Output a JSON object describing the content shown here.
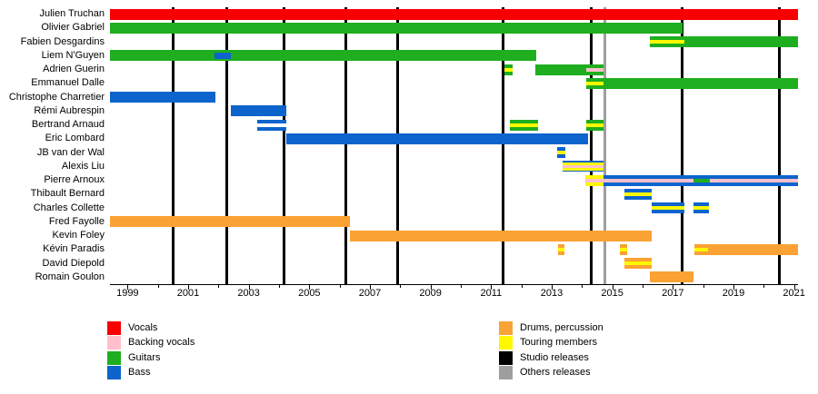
{
  "chart_data": {
    "type": "timeline",
    "description": "Band members timeline (gantt) with instrument roles and release markers",
    "x_axis": {
      "min": 1998.42,
      "max": 2021.13,
      "tick_label_years": [
        1999,
        2001,
        2003,
        2005,
        2007,
        2009,
        2011,
        2013,
        2015,
        2017,
        2019,
        2021
      ],
      "minor_tick_every_years": 1,
      "grid": false
    },
    "colors": {
      "red": "#f80000",
      "pink": "#ffc0cb",
      "green": "#1fae1f",
      "blue": "#0d64cc",
      "orange": "#faa233",
      "yellow": "#fdf800",
      "black": "#000000",
      "gray": "#9e9e9e",
      "white": "#ffffff"
    },
    "members": [
      {
        "name": "Julien Truchan",
        "segments": [
          {
            "start": 1998.42,
            "end": 2021.13,
            "stripes": [
              [
                "red",
                1
              ]
            ]
          }
        ]
      },
      {
        "name": "Olivier Gabriel",
        "segments": [
          {
            "start": 1998.42,
            "end": 2017.32,
            "stripes": [
              [
                "green",
                1
              ]
            ]
          }
        ]
      },
      {
        "name": "Fabien Desgardins",
        "segments": [
          {
            "start": 2016.24,
            "end": 2017.38,
            "stripes": [
              [
                "green",
                1
              ],
              [
                "yellow",
                1
              ],
              [
                "green",
                1
              ]
            ]
          },
          {
            "start": 2017.38,
            "end": 2021.13,
            "stripes": [
              [
                "green",
                1
              ]
            ]
          }
        ]
      },
      {
        "name": "Liem N'Guyen",
        "segments": [
          {
            "start": 1998.42,
            "end": 2001.88,
            "stripes": [
              [
                "green",
                1
              ]
            ]
          },
          {
            "start": 2001.88,
            "end": 2002.4,
            "stripes": [
              [
                "green",
                0.2
              ],
              [
                "blue",
                0.6
              ],
              [
                "green",
                0.2
              ]
            ]
          },
          {
            "start": 2002.4,
            "end": 2012.5,
            "stripes": [
              [
                "green",
                1
              ]
            ]
          }
        ]
      },
      {
        "name": "Adrien Guerin",
        "segments": [
          {
            "start": 2011.44,
            "end": 2011.72,
            "stripes": [
              [
                "green",
                1
              ],
              [
                "yellow",
                1
              ],
              [
                "green",
                1
              ]
            ]
          },
          {
            "start": 2012.47,
            "end": 2014.14,
            "stripes": [
              [
                "green",
                1
              ]
            ]
          },
          {
            "start": 2014.14,
            "end": 2014.7,
            "stripes": [
              [
                "green",
                1
              ],
              [
                "pink",
                1
              ],
              [
                "green",
                1
              ]
            ]
          }
        ]
      },
      {
        "name": "Emmanuel Dalle",
        "segments": [
          {
            "start": 2014.14,
            "end": 2014.7,
            "stripes": [
              [
                "green",
                1
              ],
              [
                "yellow",
                1
              ],
              [
                "green",
                1
              ]
            ]
          },
          {
            "start": 2014.7,
            "end": 2021.13,
            "stripes": [
              [
                "green",
                1
              ]
            ]
          }
        ]
      },
      {
        "name": "Christophe Charretier",
        "segments": [
          {
            "start": 1998.42,
            "end": 2001.9,
            "stripes": [
              [
                "blue",
                1
              ]
            ]
          }
        ]
      },
      {
        "name": "Rémi Aubrespin",
        "segments": [
          {
            "start": 2002.42,
            "end": 2004.25,
            "stripes": [
              [
                "blue",
                1
              ]
            ]
          }
        ]
      },
      {
        "name": "Bertrand Arnaud",
        "segments": [
          {
            "start": 2003.28,
            "end": 2004.25,
            "stripes": [
              [
                "blue",
                1
              ],
              [
                "white",
                1
              ],
              [
                "blue",
                1
              ]
            ]
          },
          {
            "start": 2011.62,
            "end": 2012.55,
            "stripes": [
              [
                "green",
                1
              ],
              [
                "yellow",
                1
              ],
              [
                "green",
                1
              ]
            ]
          },
          {
            "start": 2014.14,
            "end": 2014.7,
            "stripes": [
              [
                "green",
                1
              ],
              [
                "yellow",
                1
              ],
              [
                "green",
                1
              ]
            ]
          }
        ]
      },
      {
        "name": "Eric Lombard",
        "segments": [
          {
            "start": 2004.25,
            "end": 2014.2,
            "stripes": [
              [
                "blue",
                1
              ]
            ]
          }
        ]
      },
      {
        "name": "JB van der Wal",
        "segments": [
          {
            "start": 2013.18,
            "end": 2013.46,
            "stripes": [
              [
                "blue",
                1
              ],
              [
                "yellow",
                1
              ],
              [
                "blue",
                1
              ]
            ]
          }
        ]
      },
      {
        "name": "Alexis Liu",
        "segments": [
          {
            "start": 2013.36,
            "end": 2014.7,
            "stripes": [
              [
                "blue",
                0.7
              ],
              [
                "yellow",
                1
              ],
              [
                "pink",
                1.1
              ],
              [
                "yellow",
                1
              ],
              [
                "blue",
                0.7
              ]
            ]
          }
        ]
      },
      {
        "name": "Pierre Arnoux",
        "segments": [
          {
            "start": 2014.11,
            "end": 2014.7,
            "stripes": [
              [
                "yellow",
                1
              ],
              [
                "pink",
                1
              ],
              [
                "yellow",
                1
              ]
            ]
          },
          {
            "start": 2014.7,
            "end": 2017.68,
            "stripes": [
              [
                "blue",
                1
              ],
              [
                "pink",
                1
              ],
              [
                "blue",
                1
              ]
            ]
          },
          {
            "start": 2017.68,
            "end": 2018.22,
            "stripes": [
              [
                "blue",
                1
              ],
              [
                "green",
                1
              ],
              [
                "blue",
                1
              ]
            ]
          },
          {
            "start": 2018.22,
            "end": 2021.13,
            "stripes": [
              [
                "blue",
                1
              ],
              [
                "pink",
                1
              ],
              [
                "blue",
                1
              ]
            ]
          }
        ]
      },
      {
        "name": "Thibault Bernard",
        "segments": [
          {
            "start": 2015.4,
            "end": 2016.3,
            "stripes": [
              [
                "blue",
                1
              ],
              [
                "yellow",
                1
              ],
              [
                "blue",
                1
              ]
            ]
          }
        ]
      },
      {
        "name": "Charles Collette",
        "segments": [
          {
            "start": 2016.3,
            "end": 2017.38,
            "stripes": [
              [
                "blue",
                1
              ],
              [
                "yellow",
                1
              ],
              [
                "blue",
                1
              ]
            ]
          },
          {
            "start": 2017.68,
            "end": 2018.19,
            "stripes": [
              [
                "blue",
                1
              ],
              [
                "yellow",
                1
              ],
              [
                "blue",
                1
              ]
            ]
          }
        ]
      },
      {
        "name": "Fred Fayolle",
        "segments": [
          {
            "start": 1998.42,
            "end": 2006.35,
            "stripes": [
              [
                "orange",
                1
              ]
            ]
          }
        ]
      },
      {
        "name": "Kevin Foley",
        "segments": [
          {
            "start": 2006.35,
            "end": 2016.31,
            "stripes": [
              [
                "orange",
                1
              ]
            ]
          }
        ]
      },
      {
        "name": "Kévin Paradis",
        "segments": [
          {
            "start": 2013.21,
            "end": 2013.42,
            "stripes": [
              [
                "orange",
                1
              ],
              [
                "yellow",
                1
              ],
              [
                "orange",
                1
              ]
            ]
          },
          {
            "start": 2015.25,
            "end": 2015.49,
            "stripes": [
              [
                "orange",
                1
              ],
              [
                "yellow",
                1
              ],
              [
                "orange",
                1
              ]
            ]
          },
          {
            "start": 2017.71,
            "end": 2018.16,
            "stripes": [
              [
                "orange",
                1
              ],
              [
                "yellow",
                1
              ],
              [
                "orange",
                1
              ]
            ]
          },
          {
            "start": 2018.16,
            "end": 2021.13,
            "stripes": [
              [
                "orange",
                1
              ]
            ]
          }
        ]
      },
      {
        "name": "David Diepold",
        "segments": [
          {
            "start": 2015.4,
            "end": 2016.3,
            "stripes": [
              [
                "orange",
                1
              ],
              [
                "yellow",
                1
              ],
              [
                "orange",
                1
              ]
            ]
          }
        ]
      },
      {
        "name": "Romain Goulon",
        "segments": [
          {
            "start": 2016.24,
            "end": 2017.68,
            "stripes": [
              [
                "orange",
                1
              ]
            ]
          }
        ]
      }
    ],
    "studio_release_years": [
      2000.5,
      2002.27,
      2004.16,
      2006.2,
      2007.9,
      2011.38,
      2014.29,
      2017.29,
      2020.5
    ],
    "other_release_years": [
      2014.75
    ],
    "legend": {
      "columns": [
        {
          "items": [
            {
              "label": "Vocals",
              "color_key": "red"
            },
            {
              "label": "Backing vocals",
              "color_key": "pink"
            },
            {
              "label": "Guitars",
              "color_key": "green"
            },
            {
              "label": "Bass",
              "color_key": "blue"
            }
          ]
        },
        {
          "items": [
            {
              "label": "Drums, percussion",
              "color_key": "orange"
            },
            {
              "label": "Touring members",
              "color_key": "yellow"
            },
            {
              "label": "Studio releases",
              "color_key": "black"
            },
            {
              "label": "Others releases",
              "color_key": "gray"
            }
          ]
        }
      ]
    }
  }
}
